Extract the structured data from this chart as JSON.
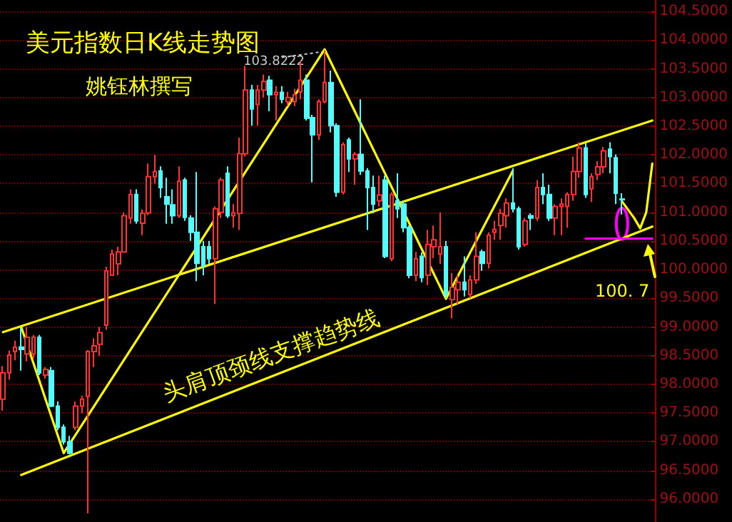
{
  "chart_data": {
    "type": "candlestick",
    "title": "美元指数日K线走势图",
    "subtitle": "姚钰林撰写",
    "annotations": [
      "100. 7",
      "头肩顶颈线支撑趋势线",
      "103.8222"
    ],
    "categories": [
      null,
      null,
      null,
      null,
      null,
      null,
      null,
      null,
      null,
      null,
      null,
      null,
      null,
      null,
      null,
      null,
      null,
      null,
      null,
      null,
      null,
      null,
      null,
      null,
      null,
      null,
      null,
      null,
      null,
      null,
      null,
      null,
      null,
      null,
      null,
      null,
      null,
      null,
      null,
      null,
      null,
      null,
      null,
      null,
      null,
      null,
      null,
      null,
      null,
      null,
      null,
      null,
      null,
      null,
      null,
      null,
      null,
      null,
      null,
      null,
      null,
      null,
      null,
      null,
      null,
      null,
      null,
      null,
      null,
      null,
      null,
      null,
      null,
      null,
      null,
      null,
      null,
      null,
      null,
      null,
      null,
      null,
      null,
      null,
      null,
      null,
      null,
      null,
      null,
      null,
      null,
      null,
      null,
      null,
      null,
      null,
      null,
      null,
      null,
      null,
      null,
      null,
      null,
      null,
      null,
      null,
      null,
      null
    ],
    "ohlc": [
      [
        97.74,
        98.32,
        97.54,
        98.2
      ],
      [
        98.2,
        98.59,
        98.08,
        98.51
      ],
      [
        98.57,
        98.76,
        98.42,
        98.65
      ],
      [
        98.65,
        99.0,
        98.24,
        98.61
      ],
      [
        98.53,
        99.0,
        98.4,
        98.82
      ],
      [
        98.53,
        98.86,
        98.45,
        98.82
      ],
      [
        98.82,
        98.86,
        98.16,
        98.2
      ],
      [
        98.16,
        98.3,
        98.1,
        98.26
      ],
      [
        98.24,
        98.3,
        97.6,
        97.62
      ],
      [
        97.62,
        97.7,
        97.2,
        97.25
      ],
      [
        97.25,
        97.3,
        96.95,
        97.0
      ],
      [
        97.0,
        97.1,
        96.78,
        96.8
      ],
      [
        97.25,
        97.7,
        97.2,
        97.62
      ],
      [
        97.62,
        97.8,
        97.5,
        97.74
      ],
      [
        97.79,
        98.6,
        95.75,
        98.57
      ],
      [
        98.57,
        98.8,
        98.3,
        98.67
      ],
      [
        98.7,
        99.0,
        98.5,
        98.9
      ],
      [
        99.03,
        100.05,
        98.95,
        99.98
      ],
      [
        99.9,
        100.35,
        99.9,
        100.27
      ],
      [
        100.1,
        100.4,
        99.9,
        100.31
      ],
      [
        100.31,
        101.0,
        100.3,
        100.94
      ],
      [
        100.9,
        101.4,
        100.8,
        101.31
      ],
      [
        101.31,
        101.4,
        100.8,
        100.85
      ],
      [
        100.81,
        101.05,
        100.6,
        100.98
      ],
      [
        100.99,
        101.85,
        100.95,
        101.62
      ],
      [
        101.62,
        102.0,
        101.5,
        101.71
      ],
      [
        101.72,
        101.8,
        101.25,
        101.43
      ],
      [
        101.27,
        101.6,
        100.8,
        101.14
      ],
      [
        101.13,
        101.4,
        100.8,
        100.94
      ],
      [
        100.94,
        101.8,
        100.9,
        101.54
      ],
      [
        101.56,
        101.6,
        100.85,
        100.91
      ],
      [
        100.9,
        100.95,
        100.5,
        100.65
      ],
      [
        100.65,
        101.7,
        99.8,
        100.11
      ],
      [
        100.4,
        100.5,
        99.9,
        100.07
      ],
      [
        100.4,
        100.5,
        100.1,
        100.19
      ],
      [
        100.19,
        101.1,
        99.4,
        101.06
      ],
      [
        101.0,
        101.6,
        100.9,
        101.56
      ],
      [
        101.68,
        101.8,
        100.9,
        100.94
      ],
      [
        100.94,
        101.14,
        100.73,
        100.99
      ],
      [
        100.98,
        102.3,
        100.69,
        102.02
      ],
      [
        102.02,
        103.55,
        101.97,
        103.13
      ],
      [
        103.13,
        103.22,
        102.51,
        102.8
      ],
      [
        102.88,
        103.22,
        102.51,
        103.13
      ],
      [
        103.13,
        103.4,
        103.0,
        103.28
      ],
      [
        103.3,
        103.38,
        102.76,
        103.05
      ],
      [
        103.05,
        103.2,
        102.6,
        103.09
      ],
      [
        103.09,
        103.2,
        102.9,
        102.97
      ],
      [
        102.93,
        103.1,
        102.85,
        103.0
      ],
      [
        102.93,
        103.15,
        102.85,
        103.05
      ],
      [
        103.1,
        103.63,
        102.97,
        103.3
      ],
      [
        103.3,
        103.4,
        102.6,
        102.64
      ],
      [
        102.65,
        102.7,
        101.52,
        102.35
      ],
      [
        102.35,
        102.97,
        102.26,
        102.93
      ],
      [
        102.93,
        103.8222,
        102.9,
        103.26
      ],
      [
        103.26,
        103.47,
        102.39,
        102.51
      ],
      [
        102.51,
        102.55,
        101.27,
        101.35
      ],
      [
        101.35,
        102.22,
        101.31,
        102.18
      ],
      [
        102.26,
        102.3,
        101.7,
        101.93
      ],
      [
        101.93,
        102.05,
        101.48,
        102.01
      ],
      [
        102.01,
        102.97,
        101.65,
        101.72
      ],
      [
        101.72,
        101.77,
        100.69,
        101.43
      ],
      [
        101.43,
        101.64,
        100.98,
        101.14
      ],
      [
        101.2,
        101.64,
        101.1,
        101.3
      ],
      [
        101.56,
        101.64,
        100.2,
        100.23
      ],
      [
        100.19,
        101.35,
        100.15,
        101.31
      ],
      [
        101.2,
        101.68,
        100.9,
        101.06
      ],
      [
        101.14,
        101.2,
        100.65,
        100.73
      ],
      [
        100.73,
        100.77,
        99.85,
        99.9
      ],
      [
        99.9,
        100.31,
        99.8,
        100.19
      ],
      [
        100.23,
        100.3,
        99.78,
        99.86
      ],
      [
        99.9,
        100.69,
        99.73,
        100.44
      ],
      [
        100.4,
        100.77,
        100.2,
        100.52
      ],
      [
        100.27,
        101.0,
        100.1,
        100.4
      ],
      [
        100.4,
        100.5,
        99.5,
        99.57
      ],
      [
        99.48,
        99.94,
        99.15,
        99.69
      ],
      [
        99.65,
        99.9,
        99.4,
        99.78
      ],
      [
        99.78,
        100.23,
        99.53,
        99.65
      ],
      [
        99.57,
        99.9,
        99.5,
        99.82
      ],
      [
        99.82,
        100.65,
        99.75,
        100.23
      ],
      [
        100.31,
        100.35,
        99.98,
        100.11
      ],
      [
        100.11,
        100.65,
        100.02,
        100.6
      ],
      [
        100.65,
        100.85,
        100.52,
        100.7
      ],
      [
        100.77,
        101.06,
        100.52,
        100.98
      ],
      [
        100.94,
        101.24,
        100.73,
        101.16
      ],
      [
        101.16,
        101.77,
        101.0,
        101.06
      ],
      [
        101.06,
        101.1,
        100.35,
        100.4
      ],
      [
        100.44,
        100.9,
        100.4,
        100.85
      ],
      [
        100.94,
        100.98,
        100.69,
        100.9
      ],
      [
        100.9,
        101.56,
        100.85,
        101.43
      ],
      [
        101.43,
        101.68,
        101.14,
        101.31
      ],
      [
        101.31,
        101.48,
        100.85,
        100.9
      ],
      [
        100.9,
        101.14,
        100.6,
        101.1
      ],
      [
        101.1,
        101.24,
        100.6,
        101.14
      ],
      [
        101.1,
        101.35,
        100.73,
        101.31
      ],
      [
        101.31,
        101.97,
        101.2,
        101.71
      ],
      [
        101.71,
        102.22,
        101.6,
        102.12
      ],
      [
        102.12,
        102.2,
        101.25,
        101.31
      ],
      [
        101.41,
        101.68,
        101.18,
        101.62
      ],
      [
        101.66,
        101.89,
        101.56,
        101.79
      ],
      [
        101.79,
        102.14,
        101.68,
        102.07
      ],
      [
        102.1,
        102.22,
        101.68,
        101.97
      ],
      [
        101.95,
        102.01,
        101.14,
        101.33
      ],
      [
        101.23,
        101.33,
        100.96,
        101.22
      ],
      null,
      null,
      null,
      null,
      null
    ],
    "colors": [
      "#ff3232",
      "#ff3232",
      "#ff3232",
      "#54fcfc",
      "#ff3232",
      "#ff3232",
      "#54fcfc",
      "#ff3232",
      "#54fcfc",
      "#54fcfc",
      "#54fcfc",
      "#54fcfc",
      "#ff3232",
      "#ff3232",
      "#ff3232",
      "#ff3232",
      "#ff3232",
      "#ff3232",
      "#ff3232",
      "#ff3232",
      "#ff3232",
      "#ff3232",
      "#54fcfc",
      "#ff3232",
      "#ff3232",
      "#ff3232",
      "#54fcfc",
      "#54fcfc",
      "#54fcfc",
      "#ff3232",
      "#54fcfc",
      "#54fcfc",
      "#54fcfc",
      "#54fcfc",
      "#54fcfc",
      "#ff3232",
      "#ff3232",
      "#54fcfc",
      "#ff3232",
      "#ff3232",
      "#ff3232",
      "#54fcfc",
      "#ff3232",
      "#ff3232",
      "#54fcfc",
      "#ff3232",
      "#54fcfc",
      "#ff3232",
      "#ff3232",
      "#ff3232",
      "#54fcfc",
      "#54fcfc",
      "#ff3232",
      "#ff3232",
      "#54fcfc",
      "#54fcfc",
      "#ff3232",
      "#54fcfc",
      "#ff3232",
      "#54fcfc",
      "#54fcfc",
      "#54fcfc",
      "#ff3232",
      "#54fcfc",
      "#ff3232",
      "#54fcfc",
      "#54fcfc",
      "#54fcfc",
      "#ff3232",
      "#54fcfc",
      "#ff3232",
      "#ff3232",
      "#ff3232",
      "#54fcfc",
      "#ff3232",
      "#ff3232",
      "#54fcfc",
      "#ff3232",
      "#ff3232",
      "#54fcfc",
      "#ff3232",
      "#ff3232",
      "#ff3232",
      "#ff3232",
      "#54fcfc",
      "#54fcfc",
      "#ff3232",
      "#54fcfc",
      "#ff3232",
      "#54fcfc",
      "#54fcfc",
      "#ff3232",
      "#ff3232",
      "#ff3232",
      "#ff3232",
      "#ff3232",
      "#54fcfc",
      "#ff3232",
      "#ff3232",
      "#ff3232",
      "#54fcfc",
      "#54fcfc",
      "#54fcfc",
      null,
      null,
      null,
      null,
      null
    ],
    "series": [
      {
        "type": "line",
        "color": "#ffff00",
        "values": [
          98.91,
          null,
          null,
          null,
          null,
          null,
          null,
          null,
          null,
          null,
          null,
          null,
          null,
          null,
          null,
          null,
          null,
          null,
          null,
          null,
          null,
          null,
          null,
          null,
          null,
          null,
          null,
          null,
          null,
          null,
          null,
          null,
          null,
          null,
          null,
          null,
          null,
          null,
          null,
          null,
          null,
          null,
          null,
          null,
          null,
          null,
          null,
          null,
          null,
          null,
          null,
          null,
          null,
          null,
          null,
          null,
          null,
          null,
          null,
          null,
          null,
          null,
          null,
          null,
          null,
          null,
          null,
          null,
          null,
          null,
          null,
          null,
          null,
          null,
          null,
          null,
          null,
          null,
          null,
          null,
          null,
          null,
          null,
          null,
          null,
          null,
          null,
          null,
          null,
          null,
          null,
          null,
          null,
          null,
          null,
          null,
          null,
          null,
          null,
          null,
          null,
          null,
          null,
          null,
          null,
          null,
          null,
          102.6
        ]
      },
      {
        "type": "line",
        "color": "#ffff00",
        "values": [
          null,
          null,
          null,
          96.42,
          null,
          null,
          null,
          null,
          null,
          null,
          null,
          null,
          null,
          null,
          null,
          null,
          null,
          null,
          null,
          null,
          null,
          null,
          null,
          null,
          null,
          null,
          null,
          null,
          null,
          null,
          null,
          null,
          null,
          null,
          null,
          null,
          null,
          null,
          null,
          null,
          null,
          null,
          null,
          null,
          null,
          null,
          null,
          null,
          null,
          null,
          null,
          null,
          null,
          null,
          null,
          null,
          null,
          null,
          null,
          null,
          null,
          null,
          null,
          null,
          null,
          null,
          null,
          null,
          null,
          null,
          null,
          null,
          null,
          null,
          null,
          null,
          null,
          null,
          null,
          null,
          null,
          null,
          null,
          null,
          null,
          null,
          null,
          null,
          null,
          null,
          null,
          null,
          null,
          null,
          null,
          null,
          null,
          null,
          null,
          null,
          null,
          null,
          null,
          null,
          null,
          null,
          null,
          100.75
        ]
      },
      {
        "type": "line",
        "color": "#ffff00",
        "values": [
          null,
          null,
          null,
          99.0,
          null,
          null,
          null,
          null,
          null,
          null,
          96.8,
          null,
          null,
          null,
          null,
          null,
          null,
          null,
          null,
          null,
          null,
          null,
          null,
          null,
          null,
          null,
          null,
          null,
          null,
          null,
          null,
          null,
          null,
          null,
          null,
          null,
          null,
          null,
          null,
          null,
          null,
          null,
          null,
          null,
          null,
          null,
          null,
          null,
          null,
          null,
          null,
          null,
          null,
          103.84,
          null,
          null,
          null,
          null,
          null,
          null,
          null,
          null,
          null,
          null,
          null,
          null,
          null,
          null,
          null,
          null,
          null,
          null,
          null,
          99.49,
          null,
          null,
          null,
          null,
          null,
          null,
          null,
          null,
          null,
          null,
          101.72,
          null,
          null,
          null,
          null,
          null,
          null,
          null,
          null,
          null,
          null,
          null,
          null,
          null,
          null,
          null,
          null,
          null,
          null,
          null,
          null,
          null,
          null,
          null
        ]
      },
      {
        "type": "line",
        "color": "#ff00ff",
        "values": [
          null,
          null,
          null,
          null,
          null,
          null,
          null,
          null,
          null,
          null,
          null,
          null,
          null,
          null,
          null,
          null,
          null,
          null,
          null,
          null,
          null,
          null,
          null,
          null,
          null,
          null,
          null,
          null,
          null,
          null,
          null,
          null,
          null,
          null,
          null,
          null,
          null,
          null,
          null,
          null,
          null,
          null,
          null,
          null,
          null,
          null,
          null,
          null,
          null,
          null,
          null,
          null,
          null,
          null,
          null,
          null,
          null,
          null,
          null,
          null,
          null,
          null,
          null,
          null,
          null,
          null,
          null,
          null,
          null,
          null,
          null,
          null,
          null,
          null,
          null,
          null,
          null,
          null,
          null,
          null,
          null,
          null,
          null,
          null,
          null,
          null,
          null,
          null,
          null,
          null,
          null,
          null,
          null,
          null,
          null,
          null,
          100.54,
          null,
          null,
          null,
          null,
          null,
          null,
          null,
          null,
          null,
          null,
          100.54
        ]
      },
      {
        "type": "line",
        "color": "#ffff00",
        "values": [
          null,
          null,
          null,
          null,
          null,
          null,
          null,
          null,
          null,
          null,
          null,
          null,
          null,
          null,
          null,
          null,
          null,
          null,
          null,
          null,
          null,
          null,
          null,
          null,
          null,
          null,
          null,
          null,
          null,
          null,
          null,
          null,
          null,
          null,
          null,
          null,
          null,
          null,
          null,
          null,
          null,
          null,
          null,
          null,
          null,
          null,
          null,
          null,
          null,
          null,
          null,
          null,
          null,
          null,
          null,
          null,
          null,
          null,
          null,
          null,
          null,
          null,
          null,
          null,
          null,
          null,
          null,
          null,
          null,
          null,
          null,
          null,
          null,
          null,
          null,
          null,
          null,
          null,
          null,
          null,
          null,
          null,
          null,
          null,
          null,
          null,
          null,
          null,
          null,
          null,
          null,
          null,
          null,
          null,
          null,
          null,
          null,
          null,
          null,
          null,
          null,
          null,
          101.19,
          null,
          100.9,
          100.72,
          101.0,
          101.85
        ]
      }
    ],
    "ylim": [
      95.6,
      104.7
    ],
    "yticks": [
      {
        "value": 96,
        "label": "96.0000"
      },
      {
        "value": 96.5,
        "label": "96.5000"
      },
      {
        "value": 97,
        "label": "97.0000"
      },
      {
        "value": 97.5,
        "label": "97.5000"
      },
      {
        "value": 98,
        "label": "98.0000"
      },
      {
        "value": 98.5,
        "label": "98.5000"
      },
      {
        "value": 99,
        "label": "99.0000"
      },
      {
        "value": 99.5,
        "label": "99.5000"
      },
      {
        "value": 100,
        "label": "100.0000"
      },
      {
        "value": 100.5,
        "label": "100.5000"
      },
      {
        "value": 101,
        "label": "101.0000"
      },
      {
        "value": 101.5,
        "label": "101.5000"
      },
      {
        "value": 102,
        "label": "102.0000"
      },
      {
        "value": 102.5,
        "label": "102.5000"
      },
      {
        "value": 103,
        "label": "103.0000"
      },
      {
        "value": 103.5,
        "label": "103.5000"
      },
      {
        "value": 104,
        "label": "104.0000"
      },
      {
        "value": 104.5,
        "label": "104.5000"
      }
    ],
    "grid": "y",
    "tick_labels": "y"
  }
}
